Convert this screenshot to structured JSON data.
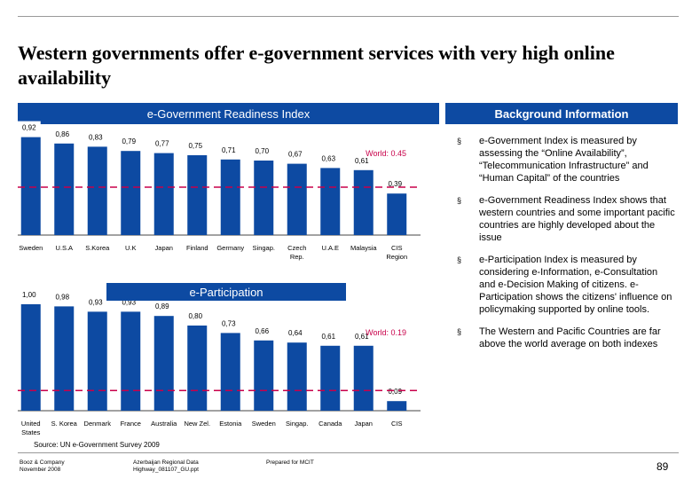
{
  "title": "Western governments offer e-government services with very high online availability",
  "headers": {
    "egov": "e-Government Readiness Index",
    "background": "Background Information",
    "epart": "e-Participation"
  },
  "chart_data": [
    {
      "type": "bar",
      "title": "e-Government Readiness Index",
      "categories": [
        "Sweden",
        "U.S.A",
        "S.Korea",
        "U.K",
        "Japan",
        "Finland",
        "Germany",
        "Singap.",
        "Czech Rep.",
        "U.A.E",
        "Malaysia",
        "CIS Region"
      ],
      "values": [
        0.92,
        0.86,
        0.83,
        0.79,
        0.77,
        0.75,
        0.71,
        0.7,
        0.67,
        0.63,
        0.61,
        0.39
      ],
      "value_labels": [
        "0,92",
        "0,86",
        "0,83",
        "0,79",
        "0,77",
        "0,75",
        "0,71",
        "0,70",
        "0,67",
        "0,63",
        "0,61",
        "0,39"
      ],
      "reference_line": {
        "label": "World: 0.45",
        "value": 0.45
      },
      "ylim": [
        0,
        1
      ],
      "grid": false,
      "bar_color": "#0d4aa2"
    },
    {
      "type": "bar",
      "title": "e-Participation",
      "categories": [
        "United States",
        "S. Korea",
        "Denmark",
        "France",
        "Australia",
        "New Zel.",
        "Estonia",
        "Sweden",
        "Singap.",
        "Canada",
        "Japan",
        "CIS"
      ],
      "values": [
        1.0,
        0.98,
        0.93,
        0.93,
        0.89,
        0.8,
        0.73,
        0.66,
        0.64,
        0.61,
        0.61,
        0.09
      ],
      "value_labels": [
        "1,00",
        "0,98",
        "0,93",
        "0,93",
        "0,89",
        "0,80",
        "0,73",
        "0,66",
        "0,64",
        "0,61",
        "0,61",
        "0,09"
      ],
      "reference_line": {
        "label": "World: 0.19",
        "value": 0.19
      },
      "ylim": [
        0,
        1
      ],
      "grid": false,
      "bar_color": "#0d4aa2"
    }
  ],
  "background_points": [
    "e-Government Index is measured by assessing the “Online Availability”, “Telecommunication Infrastructure” and “Human Capital” of the countries",
    "e-Government Readiness Index shows that western countries and some important pacific countries are highly developed about the issue",
    "e-Participation Index is measured by considering e-Information, e-Consultation and e-Decision Making of citizens. e-Participation shows the citizens' influence on policymaking supported by online tools.",
    "The Western and Pacific Countries are far above the world average on both indexes"
  ],
  "bullet_symbol": "§",
  "source": "Source: UN e-Government Survey 2009",
  "footer": {
    "company": "Booz & Company",
    "date": "November 2008",
    "file_line1": "Azerbaijan Regional Data",
    "file_line2": "Highway_081107_GU.ppt",
    "prepared": "Prepared for MCIT",
    "page": "89"
  },
  "colors": {
    "bar": "#0d4aa2",
    "reference": "#c8004a",
    "value_label_box": "#ffffff"
  }
}
